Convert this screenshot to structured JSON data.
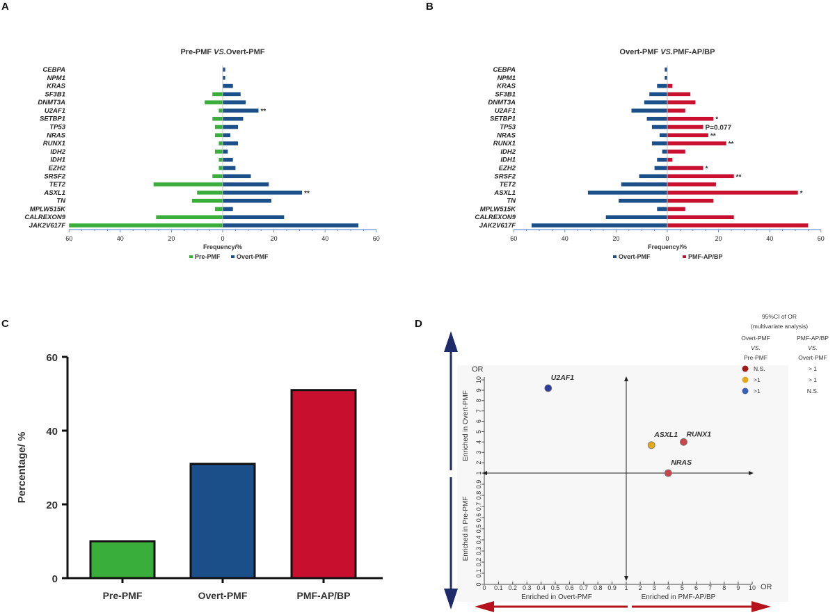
{
  "panels": {
    "a": "A",
    "b": "B",
    "c": "C",
    "d": "D"
  },
  "chart_data": [
    {
      "id": "A",
      "type": "bar",
      "title_prefix": "Pre-PMF ",
      "title_vs": "VS.",
      "title_suffix": "Overt-PMF",
      "xlabel": "Frequency/%",
      "xlim": [
        -60,
        60
      ],
      "ticks": [
        "60",
        "40",
        "20",
        "0",
        "20",
        "40",
        "60"
      ],
      "categories": [
        "CEBPA",
        "NPM1",
        "KRAS",
        "SF3B1",
        "DNMT3A",
        "U2AF1",
        "SETBP1",
        "TP53",
        "NRAS",
        "RUNX1",
        "IDH2",
        "IDH1",
        "EZH2",
        "SRSF2",
        "TET2",
        "ASXL1",
        "TN",
        "MPLW515K",
        "CALREXON9",
        "JAK2V617F"
      ],
      "series": [
        {
          "name": "Pre-PMF",
          "color": "#3aae3a",
          "direction": "left",
          "values": [
            0,
            0,
            0,
            4,
            7,
            1.5,
            4,
            3,
            3,
            1.5,
            3,
            1.5,
            1.5,
            4,
            27,
            10,
            12,
            3,
            26,
            60
          ]
        },
        {
          "name": "Overt-PMF",
          "color": "#1a4f8a",
          "direction": "right",
          "values": [
            1,
            1,
            4,
            7,
            9,
            14,
            8,
            6,
            3,
            6,
            2,
            4,
            5,
            11,
            18,
            31,
            19,
            4,
            24,
            53
          ]
        }
      ],
      "annotations": [
        {
          "category": "U2AF1",
          "text": "**"
        },
        {
          "category": "ASXL1",
          "text": "**"
        }
      ]
    },
    {
      "id": "B",
      "type": "bar",
      "title_prefix": "Overt-PMF ",
      "title_vs": "VS.",
      "title_suffix": "PMF-AP/BP",
      "xlabel": "Frequency/%",
      "xlim": [
        -60,
        60
      ],
      "ticks": [
        "60",
        "40",
        "20",
        "0",
        "20",
        "40",
        "60"
      ],
      "categories": [
        "CEBPA",
        "NPM1",
        "KRAS",
        "SF3B1",
        "DNMT3A",
        "U2AF1",
        "SETBP1",
        "TP53",
        "NRAS",
        "RUNX1",
        "IDH2",
        "IDH1",
        "EZH2",
        "SRSF2",
        "TET2",
        "ASXL1",
        "TN",
        "MPLW515K",
        "CALREXON9",
        "JAK2V617F"
      ],
      "series": [
        {
          "name": "Overt-PMF",
          "color": "#1a4f8a",
          "direction": "left",
          "values": [
            1,
            1,
            4,
            7,
            9,
            14,
            8,
            6,
            3,
            6,
            2,
            4,
            5,
            11,
            18,
            31,
            19,
            4,
            24,
            53
          ]
        },
        {
          "name": "PMF-AP/BP",
          "color": "#c8102e",
          "direction": "right",
          "values": [
            0,
            0,
            2,
            9,
            11,
            7,
            18,
            14,
            16,
            23,
            7,
            2,
            14,
            26,
            19,
            51,
            18,
            7,
            26,
            55
          ]
        }
      ],
      "annotations": [
        {
          "category": "SETBP1",
          "text": "*"
        },
        {
          "category": "TP53",
          "text": "P=0.077"
        },
        {
          "category": "NRAS",
          "text": "**"
        },
        {
          "category": "RUNX1",
          "text": "**"
        },
        {
          "category": "EZH2",
          "text": "*"
        },
        {
          "category": "SRSF2",
          "text": "**"
        },
        {
          "category": "ASXL1",
          "text": "*"
        }
      ]
    },
    {
      "id": "C",
      "type": "bar",
      "ylabel": "Percentage/ %",
      "ylim": [
        0,
        60
      ],
      "yticks": [
        "0",
        "20",
        "40",
        "60"
      ],
      "categories": [
        "Pre-PMF",
        "Overt-PMF",
        "PMF-AP/BP"
      ],
      "values": [
        10,
        31,
        51
      ],
      "colors": [
        "#3aae3a",
        "#1a4f8a",
        "#c8102e"
      ]
    },
    {
      "id": "D",
      "type": "scatter",
      "ylabel_top": "Enriched in Overt-PMF",
      "ylabel_bottom": "Enriched in Pre-PMF",
      "xlabel_left": "Enriched in Overt-PMF",
      "xlabel_right": "Enriched in PMF-AP/BP",
      "axis_label": "OR",
      "axis_label_right": "OR",
      "xticks_left": [
        "0",
        "0.1",
        "0.2",
        "0.3",
        "0.4",
        "0.5",
        "0.6",
        "0.7",
        "0.8",
        "0.9",
        "1"
      ],
      "xticks_right": [
        "2",
        "3",
        "4",
        "5",
        "6",
        "7",
        "8",
        "9",
        "10"
      ],
      "yticks_top": [
        "2",
        "3",
        "4",
        "5",
        "6",
        "7",
        "8",
        "9",
        "10"
      ],
      "yticks_bottom": [
        "0",
        "0.1",
        "0.2",
        "0.3",
        "0.4",
        "0.5",
        "0.6",
        "0.7",
        "0.8",
        "0.9",
        "1"
      ],
      "points": [
        {
          "label": "U2AF1",
          "x": 0.45,
          "y": 9.2,
          "color": "#2b3b9e"
        },
        {
          "label": "ASXL1",
          "x": 2.8,
          "y": 3.7,
          "color": "#e3a91c"
        },
        {
          "label": "RUNX1",
          "x": 5.1,
          "y": 4.0,
          "color": "#c8464a"
        },
        {
          "label": "NRAS",
          "x": 4.0,
          "y": 1.0,
          "color": "#c8464a"
        }
      ],
      "legend": {
        "title1": "95%CI of OR",
        "title2": "(multivariate analysis)",
        "col1_line1": "Overt-PMF",
        "col1_line2": "VS.",
        "col1_line3": "Pre-PMF",
        "col2_line1": "PMF-AP/BP",
        "col2_line2": "VS.",
        "col2_line3": "Overt-PMF",
        "rows": [
          {
            "color": "#a01a1a",
            "c1": "N.S.",
            "c2": "> 1"
          },
          {
            "color": "#e3a91c",
            "c1": ">1",
            "c2": "> 1"
          },
          {
            "color": "#3a5fb8",
            "c1": ">1",
            "c2": "N.S."
          }
        ]
      }
    }
  ]
}
